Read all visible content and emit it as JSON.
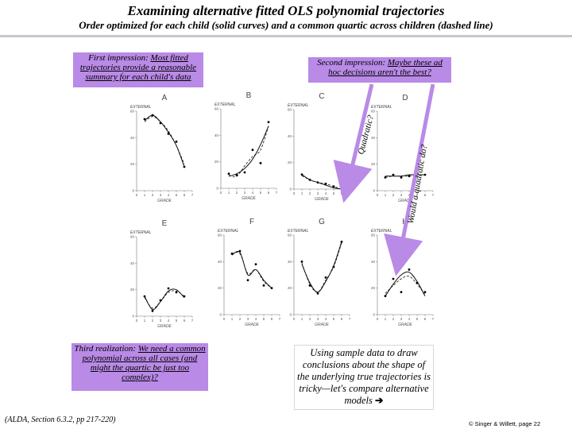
{
  "title": "Examining alternative fitted OLS polynomial trajectories",
  "subtitle": "Order optimized for each child (solid curves) and a common quartic across children (dashed line)",
  "callouts": {
    "first": {
      "prefix": "First impression: ",
      "underlined": "Most fitted trajectories provide a reasonable summary for each child's data"
    },
    "second": {
      "prefix": "Second impression: ",
      "underlined": "Maybe these ad hoc decisions aren't the best?"
    },
    "third": {
      "prefix": "Third realization: ",
      "underlined": "We need a common polynomial across all cases (and might the quartic be just too complex)?"
    }
  },
  "vertical_labels": {
    "quadratic": "Quadratic?",
    "would_quadratic": "Would a quadratic do?"
  },
  "note": {
    "text": "Using sample data to draw conclusions about the shape of the underlying true trajectories is tricky—let's compare alternative models",
    "arrow": "➔"
  },
  "reference": "(ALDA, Section 6.3.2, pp 217-220)",
  "copyright": "© Singer & Willett, page 22",
  "colors": {
    "callout": "#b98ae6",
    "rule": "#c6c6cf",
    "arrow": "#b98ae6"
  },
  "chart_data": [
    {
      "type": "scatter",
      "panel": "A",
      "ylabel": "EXTERNAL",
      "xlabel": "GRADE",
      "x_ticks": [
        0,
        1,
        2,
        3,
        4,
        5,
        6,
        7
      ],
      "y_ticks": [
        0,
        20,
        40,
        60
      ],
      "xlim": [
        0,
        7
      ],
      "ylim": [
        0,
        60
      ],
      "points": {
        "x": [
          1,
          2,
          3,
          4,
          5,
          6
        ],
        "y": [
          54,
          57,
          51,
          43,
          37,
          18
        ]
      },
      "series": [
        {
          "style": "solid",
          "y": [
            53,
            57,
            52,
            44,
            34,
            18
          ]
        },
        {
          "style": "dashed",
          "y": [
            52,
            56,
            52,
            45,
            34,
            20
          ]
        }
      ]
    },
    {
      "type": "scatter",
      "panel": "B",
      "ylabel": "EXTERNAL",
      "xlabel": "GRADE",
      "x_ticks": [
        0,
        1,
        2,
        3,
        4,
        5,
        6,
        7
      ],
      "y_ticks": [
        0,
        20,
        40,
        60
      ],
      "xlim": [
        0,
        7
      ],
      "ylim": [
        0,
        60
      ],
      "points": {
        "x": [
          1,
          2,
          3,
          4,
          5,
          6
        ],
        "y": [
          11,
          10,
          12,
          29,
          19,
          50
        ]
      },
      "series": [
        {
          "style": "solid",
          "y": [
            9,
            11,
            15,
            22,
            33,
            47
          ]
        },
        {
          "style": "dashed",
          "y": [
            10,
            9,
            17,
            24,
            29,
            47
          ]
        }
      ]
    },
    {
      "type": "scatter",
      "panel": "C",
      "ylabel": "EXTERNAL",
      "xlabel": "GRADE",
      "x_ticks": [
        0,
        1,
        2,
        3,
        4,
        5,
        6,
        7
      ],
      "y_ticks": [
        0,
        20,
        40,
        60
      ],
      "xlim": [
        0,
        7
      ],
      "ylim": [
        0,
        60
      ],
      "points": {
        "x": [
          1,
          2,
          3,
          4,
          5,
          6
        ],
        "y": [
          11,
          7,
          5,
          4,
          2,
          0
        ]
      },
      "series": [
        {
          "style": "solid",
          "y": [
            11,
            7,
            5,
            3,
            1,
            0
          ]
        },
        {
          "style": "dashed",
          "y": [
            10,
            7,
            5,
            4,
            2,
            0
          ]
        }
      ]
    },
    {
      "type": "scatter",
      "panel": "D",
      "ylabel": "EXTERNAL",
      "xlabel": "GRADE",
      "x_ticks": [
        0,
        1,
        2,
        3,
        4,
        5,
        6,
        7
      ],
      "y_ticks": [
        0,
        20,
        40,
        60
      ],
      "xlim": [
        0,
        7
      ],
      "ylim": [
        0,
        60
      ],
      "points": {
        "x": [
          1,
          2,
          3,
          4,
          5,
          6
        ],
        "y": [
          10,
          12,
          10,
          11,
          13,
          12
        ]
      },
      "series": [
        {
          "style": "solid",
          "y": [
            11,
            11,
            11,
            12,
            12,
            12
          ]
        },
        {
          "style": "dashed",
          "y": [
            10,
            11,
            11,
            11,
            12,
            12
          ]
        }
      ]
    },
    {
      "type": "scatter",
      "panel": "E",
      "ylabel": "EXTERNAL",
      "xlabel": "GRADE",
      "x_ticks": [
        0,
        1,
        2,
        3,
        4,
        5,
        6,
        7
      ],
      "y_ticks": [
        0,
        20,
        40,
        60
      ],
      "xlim": [
        0,
        7
      ],
      "ylim": [
        0,
        60
      ],
      "points": {
        "x": [
          1,
          2,
          3,
          4,
          5,
          6
        ],
        "y": [
          15,
          4,
          12,
          21,
          18,
          15
        ]
      },
      "series": [
        {
          "style": "solid",
          "y": [
            15,
            5,
            11,
            19,
            20,
            14
          ]
        },
        {
          "style": "dashed",
          "y": [
            14,
            6,
            11,
            18,
            19,
            15
          ]
        }
      ]
    },
    {
      "type": "scatter",
      "panel": "F",
      "ylabel": "EXTERNAL",
      "xlabel": "GRADE",
      "x_ticks": [
        0,
        1,
        2,
        3,
        4,
        5,
        6,
        7
      ],
      "y_ticks": [
        0,
        20,
        40,
        60
      ],
      "xlim": [
        0,
        7
      ],
      "ylim": [
        0,
        60
      ],
      "points": {
        "x": [
          1,
          2,
          3,
          4,
          5,
          6
        ],
        "y": [
          46,
          48,
          26,
          38,
          22,
          20
        ]
      },
      "series": [
        {
          "style": "solid",
          "y": [
            45,
            47,
            30,
            34,
            26,
            20
          ]
        },
        {
          "style": "dashed",
          "y": [
            46,
            46,
            31,
            34,
            25,
            20
          ]
        }
      ]
    },
    {
      "type": "scatter",
      "panel": "G",
      "ylabel": "EXTERNAL",
      "xlabel": "GRADE",
      "x_ticks": [
        0,
        1,
        2,
        3,
        4,
        5,
        6,
        7
      ],
      "y_ticks": [
        0,
        20,
        40,
        60
      ],
      "xlim": [
        0,
        7
      ],
      "ylim": [
        0,
        60
      ],
      "points": {
        "x": [
          1,
          2,
          3,
          4,
          5,
          6
        ],
        "y": [
          40,
          22,
          16,
          28,
          36,
          55
        ]
      },
      "series": [
        {
          "style": "solid",
          "y": [
            38,
            24,
            17,
            25,
            37,
            55
          ]
        },
        {
          "style": "dashed",
          "y": [
            39,
            23,
            17,
            26,
            36,
            54
          ]
        }
      ]
    },
    {
      "type": "scatter",
      "panel": "H",
      "ylabel": "EXTERNAL",
      "xlabel": "GRADE",
      "x_ticks": [
        0,
        1,
        2,
        3,
        4,
        5,
        6,
        7
      ],
      "y_ticks": [
        0,
        20,
        40,
        60
      ],
      "xlim": [
        0,
        7
      ],
      "ylim": [
        0,
        60
      ],
      "points": {
        "x": [
          1,
          2,
          3,
          4,
          5,
          6
        ],
        "y": [
          14,
          27,
          17,
          34,
          24,
          17
        ]
      },
      "series": [
        {
          "style": "solid",
          "y": [
            14,
            23,
            30,
            32,
            25,
            14
          ]
        },
        {
          "style": "dashed",
          "y": [
            16,
            22,
            27,
            29,
            23,
            15
          ]
        }
      ]
    }
  ]
}
